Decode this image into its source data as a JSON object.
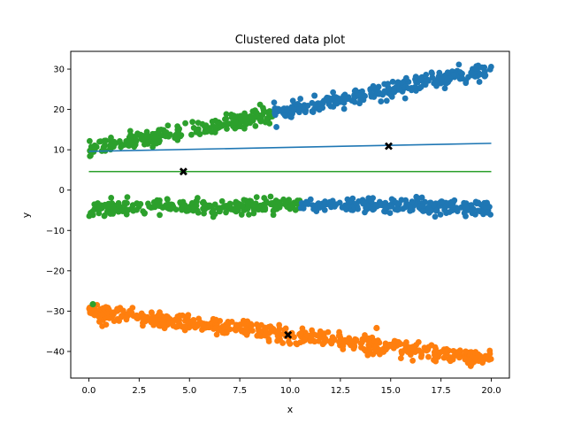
{
  "chart_data": {
    "type": "scatter",
    "title": "Clustered data plot",
    "xlabel": "x",
    "ylabel": "y",
    "xlim": [
      -0.9,
      20.9
    ],
    "ylim": [
      -46.6,
      34.4
    ],
    "xticks": [
      0.0,
      2.5,
      5.0,
      7.5,
      10.0,
      12.5,
      15.0,
      17.5,
      20.0
    ],
    "xtick_labels": [
      "0.0",
      "2.5",
      "5.0",
      "7.5",
      "10.0",
      "12.5",
      "15.0",
      "17.5",
      "20.0"
    ],
    "yticks": [
      -40,
      -30,
      -20,
      -10,
      0,
      10,
      20,
      30
    ],
    "ytick_labels": [
      "−40",
      "−30",
      "−20",
      "−10",
      "0",
      "10",
      "20",
      "30"
    ],
    "grid": false,
    "colors": {
      "blue": "#1f77b4",
      "orange": "#ff7f0e",
      "green": "#2ca02c",
      "centroid": "#000000"
    },
    "point_groups": [
      {
        "color": "#2ca02c",
        "x_range": [
          0.0,
          9.2
        ],
        "y_start": 10.0,
        "y_end": 19.0,
        "noise": 1.0,
        "count": 230
      },
      {
        "color": "#1f77b4",
        "x_range": [
          9.2,
          20.0
        ],
        "y_start": 19.0,
        "y_end": 30.0,
        "noise": 1.0,
        "count": 270
      },
      {
        "color": "#2ca02c",
        "x_range": [
          0.0,
          10.5
        ],
        "y_start": -4.8,
        "y_end": -3.6,
        "noise": 0.9,
        "count": 260
      },
      {
        "color": "#1f77b4",
        "x_range": [
          10.5,
          20.0
        ],
        "y_start": -3.6,
        "y_end": -4.2,
        "noise": 0.9,
        "count": 240
      },
      {
        "color": "#ff7f0e",
        "x_range": [
          0.0,
          20.0
        ],
        "y_start": -30.0,
        "y_end": -42.0,
        "noise": 1.0,
        "count": 500
      }
    ],
    "extra_points": [
      {
        "x": 0.2,
        "y": -28.3,
        "color": "#2ca02c"
      },
      {
        "x": 14.3,
        "y": -34.2,
        "color": "#ff7f0e"
      }
    ],
    "fit_lines": [
      {
        "color": "#1f77b4",
        "x": [
          0.0,
          20.0
        ],
        "y": [
          9.6,
          11.6
        ]
      },
      {
        "color": "#2ca02c",
        "x": [
          0.0,
          20.0
        ],
        "y": [
          4.6,
          4.6
        ]
      }
    ],
    "centroids": [
      {
        "x": 14.9,
        "y": 10.9
      },
      {
        "x": 4.7,
        "y": 4.6
      },
      {
        "x": 9.9,
        "y": -35.9
      }
    ]
  }
}
